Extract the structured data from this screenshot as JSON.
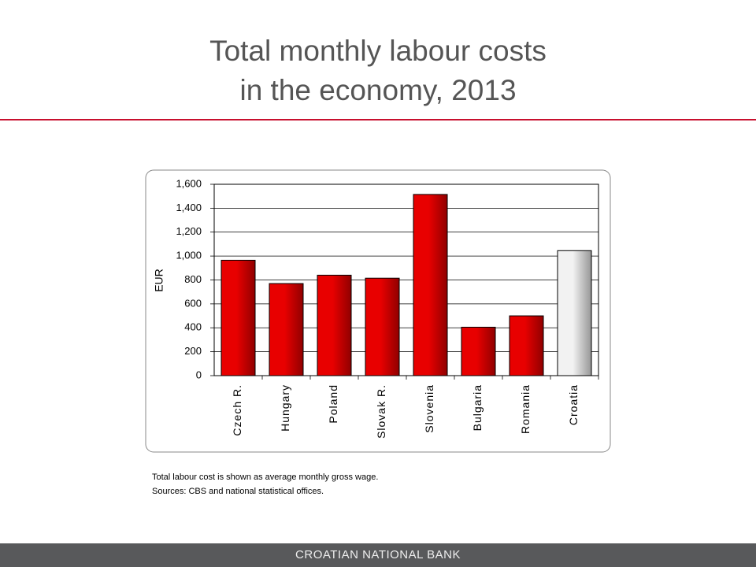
{
  "title": "Total monthly labour costs in the economy, 2013",
  "chart_data": {
    "type": "bar",
    "y_label": "EUR",
    "categories": [
      "Czech R.",
      "Hungary",
      "Poland",
      "Slovak R.",
      "Slovenia",
      "Bulgaria",
      "Romania",
      "Croatia"
    ],
    "values": [
      965,
      770,
      840,
      815,
      1515,
      405,
      500,
      1045
    ],
    "colors": [
      "#e80000",
      "#e80000",
      "#e80000",
      "#e80000",
      "#e80000",
      "#e80000",
      "#e80000",
      "#f2f2f2"
    ],
    "ylim": [
      0,
      1600
    ],
    "yticks": [
      0,
      200,
      400,
      600,
      800,
      {
        "value": 1000,
        "label": "1,000"
      },
      {
        "value": 1200,
        "label": "1,200"
      },
      {
        "value": 1400,
        "label": "1,400"
      },
      {
        "value": 1600,
        "label": "1,600"
      }
    ],
    "grid": true
  },
  "notes": [
    "Total labour cost is shown as average monthly gross wage.",
    "Sources: CBS and national statistical offices."
  ],
  "footer": "CROATIAN NATIONAL BANK"
}
